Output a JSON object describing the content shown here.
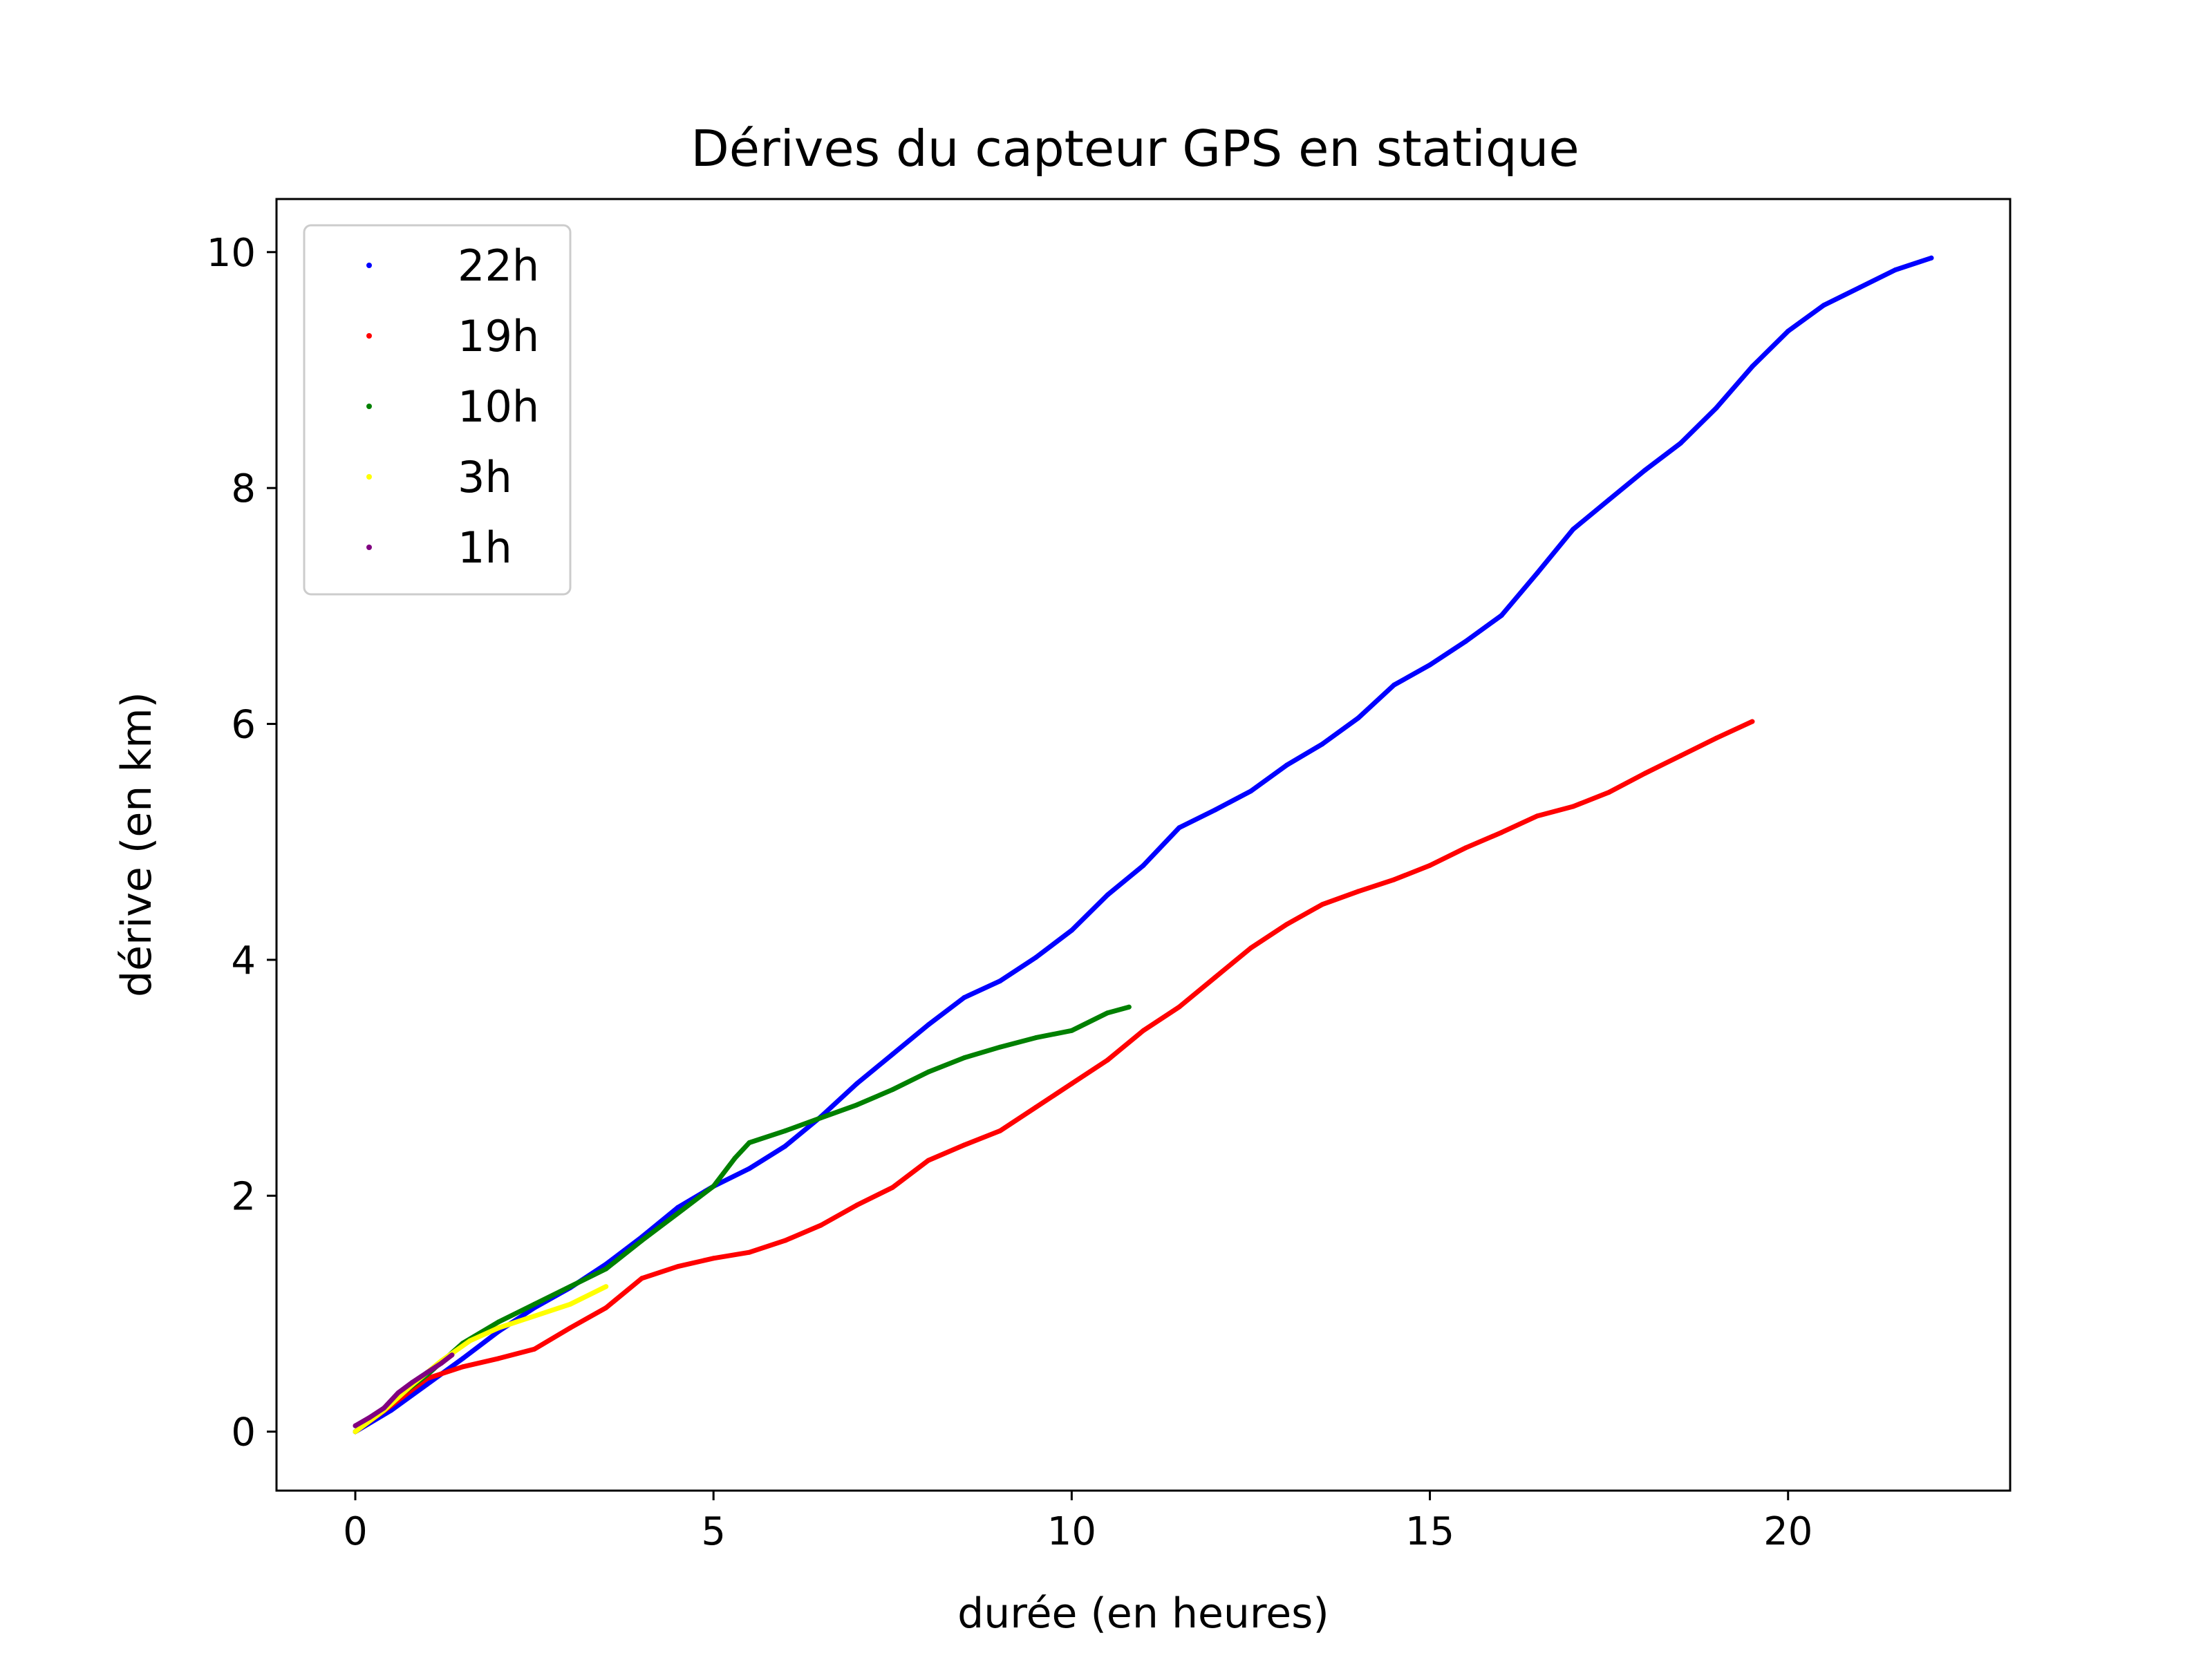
{
  "chart_data": {
    "type": "scatter",
    "title": "Dérives du capteur GPS en statique",
    "xlabel": "durée (en heures)",
    "ylabel": "dérive (en km)",
    "xlim": [
      -1.1,
      23.1
    ],
    "ylim": [
      -0.5,
      10.45
    ],
    "xticks": [
      0,
      5,
      10,
      15,
      20
    ],
    "yticks": [
      0,
      2,
      4,
      6,
      8,
      10
    ],
    "grid": false,
    "legend_position": "top-left",
    "series": [
      {
        "name": "22h",
        "color": "#0000ff",
        "points": [
          [
            0,
            0
          ],
          [
            0.5,
            0.18
          ],
          [
            1,
            0.4
          ],
          [
            1.5,
            0.62
          ],
          [
            2,
            0.85
          ],
          [
            2.5,
            1.05
          ],
          [
            3,
            1.22
          ],
          [
            3.5,
            1.42
          ],
          [
            4,
            1.65
          ],
          [
            4.5,
            1.9
          ],
          [
            5,
            2.08
          ],
          [
            5.5,
            2.23
          ],
          [
            6,
            2.42
          ],
          [
            6.5,
            2.67
          ],
          [
            7,
            2.95
          ],
          [
            7.5,
            3.2
          ],
          [
            8,
            3.45
          ],
          [
            8.5,
            3.68
          ],
          [
            9,
            3.82
          ],
          [
            9.5,
            4.02
          ],
          [
            10,
            4.25
          ],
          [
            10.5,
            4.55
          ],
          [
            11,
            4.8
          ],
          [
            11.5,
            5.12
          ],
          [
            12,
            5.27
          ],
          [
            12.5,
            5.43
          ],
          [
            13,
            5.65
          ],
          [
            13.5,
            5.83
          ],
          [
            14,
            6.05
          ],
          [
            14.5,
            6.33
          ],
          [
            15,
            6.5
          ],
          [
            15.5,
            6.7
          ],
          [
            16,
            6.92
          ],
          [
            16.5,
            7.28
          ],
          [
            17,
            7.65
          ],
          [
            17.5,
            7.9
          ],
          [
            18,
            8.15
          ],
          [
            18.5,
            8.38
          ],
          [
            19,
            8.68
          ],
          [
            19.5,
            9.03
          ],
          [
            20,
            9.33
          ],
          [
            20.5,
            9.55
          ],
          [
            21,
            9.7
          ],
          [
            21.5,
            9.85
          ],
          [
            22,
            9.95
          ]
        ]
      },
      {
        "name": "19h",
        "color": "#ff0000",
        "points": [
          [
            0,
            0
          ],
          [
            0.5,
            0.22
          ],
          [
            1,
            0.45
          ],
          [
            1.5,
            0.55
          ],
          [
            2,
            0.62
          ],
          [
            2.5,
            0.7
          ],
          [
            3,
            0.88
          ],
          [
            3.5,
            1.05
          ],
          [
            4,
            1.3
          ],
          [
            4.5,
            1.4
          ],
          [
            5,
            1.47
          ],
          [
            5.5,
            1.52
          ],
          [
            6,
            1.62
          ],
          [
            6.5,
            1.75
          ],
          [
            7,
            1.92
          ],
          [
            7.5,
            2.07
          ],
          [
            8,
            2.3
          ],
          [
            8.5,
            2.43
          ],
          [
            9,
            2.55
          ],
          [
            9.5,
            2.75
          ],
          [
            10,
            2.95
          ],
          [
            10.5,
            3.15
          ],
          [
            11,
            3.4
          ],
          [
            11.5,
            3.6
          ],
          [
            12,
            3.85
          ],
          [
            12.5,
            4.1
          ],
          [
            13,
            4.3
          ],
          [
            13.5,
            4.47
          ],
          [
            14,
            4.58
          ],
          [
            14.5,
            4.68
          ],
          [
            15,
            4.8
          ],
          [
            15.5,
            4.95
          ],
          [
            16,
            5.08
          ],
          [
            16.5,
            5.22
          ],
          [
            17,
            5.3
          ],
          [
            17.5,
            5.42
          ],
          [
            18,
            5.58
          ],
          [
            18.5,
            5.73
          ],
          [
            19,
            5.88
          ],
          [
            19.5,
            6.02
          ]
        ]
      },
      {
        "name": "10h",
        "color": "#008000",
        "points": [
          [
            0,
            0
          ],
          [
            0.5,
            0.25
          ],
          [
            1,
            0.48
          ],
          [
            1.5,
            0.75
          ],
          [
            2,
            0.93
          ],
          [
            2.5,
            1.08
          ],
          [
            3,
            1.23
          ],
          [
            3.5,
            1.38
          ],
          [
            4,
            1.62
          ],
          [
            4.5,
            1.85
          ],
          [
            5,
            2.08
          ],
          [
            5.3,
            2.32
          ],
          [
            5.5,
            2.45
          ],
          [
            6,
            2.55
          ],
          [
            6.5,
            2.66
          ],
          [
            7,
            2.77
          ],
          [
            7.5,
            2.9
          ],
          [
            8,
            3.05
          ],
          [
            8.5,
            3.17
          ],
          [
            9,
            3.26
          ],
          [
            9.5,
            3.34
          ],
          [
            10,
            3.4
          ],
          [
            10.5,
            3.55
          ],
          [
            10.8,
            3.6
          ]
        ]
      },
      {
        "name": "3h",
        "color": "#ffff00",
        "points": [
          [
            0,
            0
          ],
          [
            0.4,
            0.18
          ],
          [
            0.8,
            0.4
          ],
          [
            1.2,
            0.6
          ],
          [
            1.6,
            0.77
          ],
          [
            2,
            0.88
          ],
          [
            2.5,
            0.98
          ],
          [
            3,
            1.08
          ],
          [
            3.5,
            1.23
          ]
        ]
      },
      {
        "name": "1h",
        "color": "#800080",
        "points": [
          [
            0,
            0.05
          ],
          [
            0.2,
            0.12
          ],
          [
            0.4,
            0.2
          ],
          [
            0.6,
            0.33
          ],
          [
            0.8,
            0.42
          ],
          [
            1,
            0.5
          ],
          [
            1.2,
            0.58
          ],
          [
            1.35,
            0.65
          ]
        ]
      }
    ]
  }
}
